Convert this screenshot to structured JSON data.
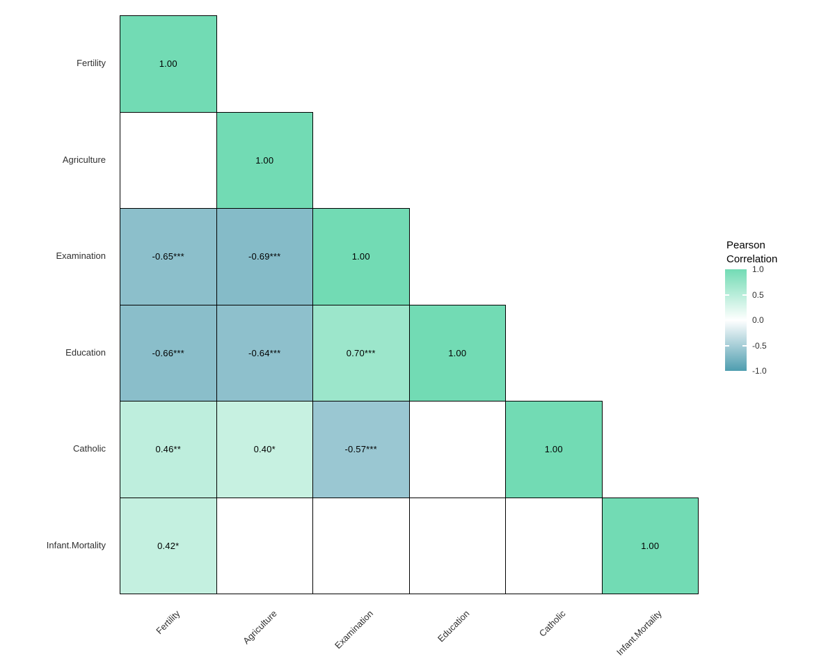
{
  "chart_data": {
    "type": "heatmap",
    "subtype": "lower-triangular-correlation-matrix",
    "variables": [
      "Fertility",
      "Agriculture",
      "Examination",
      "Education",
      "Catholic",
      "Infant.Mortality"
    ],
    "cells": [
      {
        "r": 0,
        "c": 0,
        "row": "Fertility",
        "col": "Fertility",
        "value": 1.0,
        "label": "1.00",
        "color": "#72DBB4"
      },
      {
        "r": 1,
        "c": 0,
        "row": "Agriculture",
        "col": "Fertility",
        "value": null,
        "label": "",
        "color": "#FFFFFF"
      },
      {
        "r": 1,
        "c": 1,
        "row": "Agriculture",
        "col": "Agriculture",
        "value": 1.0,
        "label": "1.00",
        "color": "#72DBB4"
      },
      {
        "r": 2,
        "c": 0,
        "row": "Examination",
        "col": "Fertility",
        "value": -0.65,
        "label": "-0.65***",
        "color": "#8CBFCB"
      },
      {
        "r": 2,
        "c": 1,
        "row": "Examination",
        "col": "Agriculture",
        "value": -0.69,
        "label": "-0.69***",
        "color": "#85BBC8"
      },
      {
        "r": 2,
        "c": 2,
        "row": "Examination",
        "col": "Examination",
        "value": 1.0,
        "label": "1.00",
        "color": "#72DBB4"
      },
      {
        "r": 3,
        "c": 0,
        "row": "Education",
        "col": "Fertility",
        "value": -0.66,
        "label": "-0.66***",
        "color": "#8ABECA"
      },
      {
        "r": 3,
        "c": 1,
        "row": "Education",
        "col": "Agriculture",
        "value": -0.64,
        "label": "-0.64***",
        "color": "#8EC0CC"
      },
      {
        "r": 3,
        "c": 2,
        "row": "Education",
        "col": "Examination",
        "value": 0.7,
        "label": "0.70***",
        "color": "#9CE6CB"
      },
      {
        "r": 3,
        "c": 3,
        "row": "Education",
        "col": "Education",
        "value": 1.0,
        "label": "1.00",
        "color": "#72DBB4"
      },
      {
        "r": 4,
        "c": 0,
        "row": "Catholic",
        "col": "Fertility",
        "value": 0.46,
        "label": "0.46**",
        "color": "#BEEEDD"
      },
      {
        "r": 4,
        "c": 1,
        "row": "Catholic",
        "col": "Agriculture",
        "value": 0.4,
        "label": "0.40*",
        "color": "#C7F1E1"
      },
      {
        "r": 4,
        "c": 2,
        "row": "Catholic",
        "col": "Examination",
        "value": -0.57,
        "label": "-0.57***",
        "color": "#9AC7D2"
      },
      {
        "r": 4,
        "c": 3,
        "row": "Catholic",
        "col": "Education",
        "value": null,
        "label": "",
        "color": "#FFFFFF"
      },
      {
        "r": 4,
        "c": 4,
        "row": "Catholic",
        "col": "Catholic",
        "value": 1.0,
        "label": "1.00",
        "color": "#72DBB4"
      },
      {
        "r": 5,
        "c": 0,
        "row": "Infant.Mortality",
        "col": "Fertility",
        "value": 0.42,
        "label": "0.42*",
        "color": "#C4F0E0"
      },
      {
        "r": 5,
        "c": 1,
        "row": "Infant.Mortality",
        "col": "Agriculture",
        "value": null,
        "label": "",
        "color": "#FFFFFF"
      },
      {
        "r": 5,
        "c": 2,
        "row": "Infant.Mortality",
        "col": "Examination",
        "value": null,
        "label": "",
        "color": "#FFFFFF"
      },
      {
        "r": 5,
        "c": 3,
        "row": "Infant.Mortality",
        "col": "Education",
        "value": null,
        "label": "",
        "color": "#FFFFFF"
      },
      {
        "r": 5,
        "c": 4,
        "row": "Infant.Mortality",
        "col": "Catholic",
        "value": null,
        "label": "",
        "color": "#FFFFFF"
      },
      {
        "r": 5,
        "c": 5,
        "row": "Infant.Mortality",
        "col": "Infant.Mortality",
        "value": 1.0,
        "label": "1.00",
        "color": "#72DBB4"
      }
    ],
    "legend": {
      "title": "Pearson\nCorrelation",
      "ticks": [
        {
          "label": "1.0",
          "value": 1.0
        },
        {
          "label": "0.5",
          "value": 0.5
        },
        {
          "label": "0.0",
          "value": 0.0
        },
        {
          "label": "-0.5",
          "value": -0.5
        },
        {
          "label": "-1.0",
          "value": -1.0
        }
      ],
      "range": [
        -1.0,
        1.0
      ],
      "color_high": "#72DBB4",
      "color_mid": "#FFFFFF",
      "color_low": "#4E9DAF"
    },
    "colors": {
      "cell_border": "#000000",
      "background": "#FFFFFF",
      "text": "#000000"
    }
  }
}
